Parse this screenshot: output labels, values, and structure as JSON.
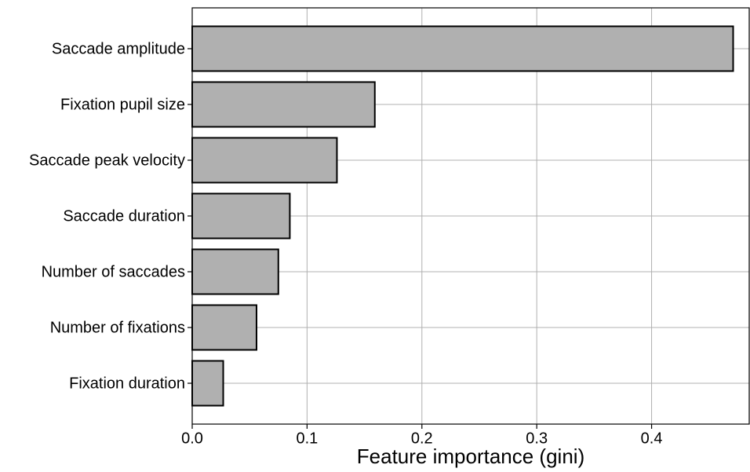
{
  "chart_data": {
    "type": "barh",
    "xlabel": "Feature importance (gini)",
    "categories": [
      "Saccade amplitude",
      "Fixation pupil size",
      "Saccade peak velocity",
      "Saccade duration",
      "Number of saccades",
      "Number of fixations",
      "Fixation duration"
    ],
    "values": [
      0.471,
      0.159,
      0.126,
      0.085,
      0.075,
      0.056,
      0.027
    ],
    "color": "#b0b0b0",
    "xlim": [
      0,
      0.485
    ],
    "xticks": [
      {
        "value": 0,
        "label": "0.0"
      },
      0.1,
      0.2,
      0.3,
      0.4
    ],
    "grid": true
  }
}
